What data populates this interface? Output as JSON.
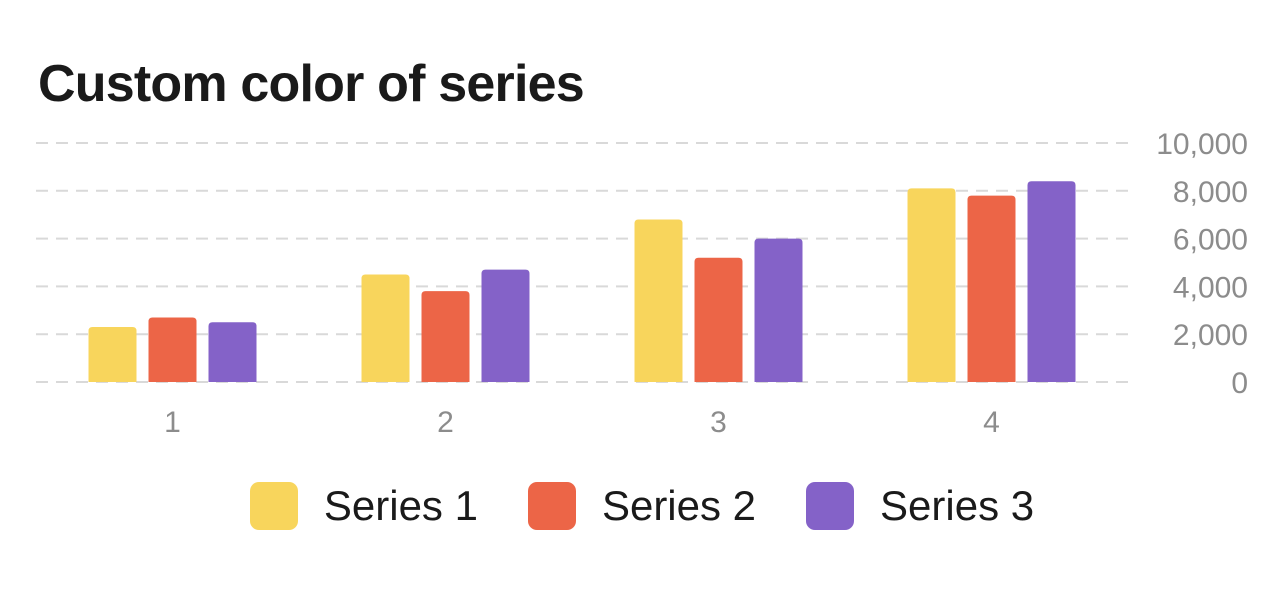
{
  "chart_data": {
    "type": "bar",
    "title": "Custom color of series",
    "categories": [
      "1",
      "2",
      "3",
      "4"
    ],
    "series": [
      {
        "name": "Series 1",
        "color": "#F8D55C",
        "values": [
          2300,
          4500,
          6800,
          8100
        ]
      },
      {
        "name": "Series 2",
        "color": "#EC6547",
        "values": [
          2700,
          3800,
          5200,
          7800
        ]
      },
      {
        "name": "Series 3",
        "color": "#8462C8",
        "values": [
          2500,
          4700,
          6000,
          8400
        ]
      }
    ],
    "yticks": [
      "0",
      "2,000",
      "4,000",
      "6,000",
      "8,000",
      "10,000"
    ],
    "ylim": [
      0,
      10000
    ],
    "y_axis_position": "right",
    "grid": true,
    "legend": "bottom-center"
  }
}
